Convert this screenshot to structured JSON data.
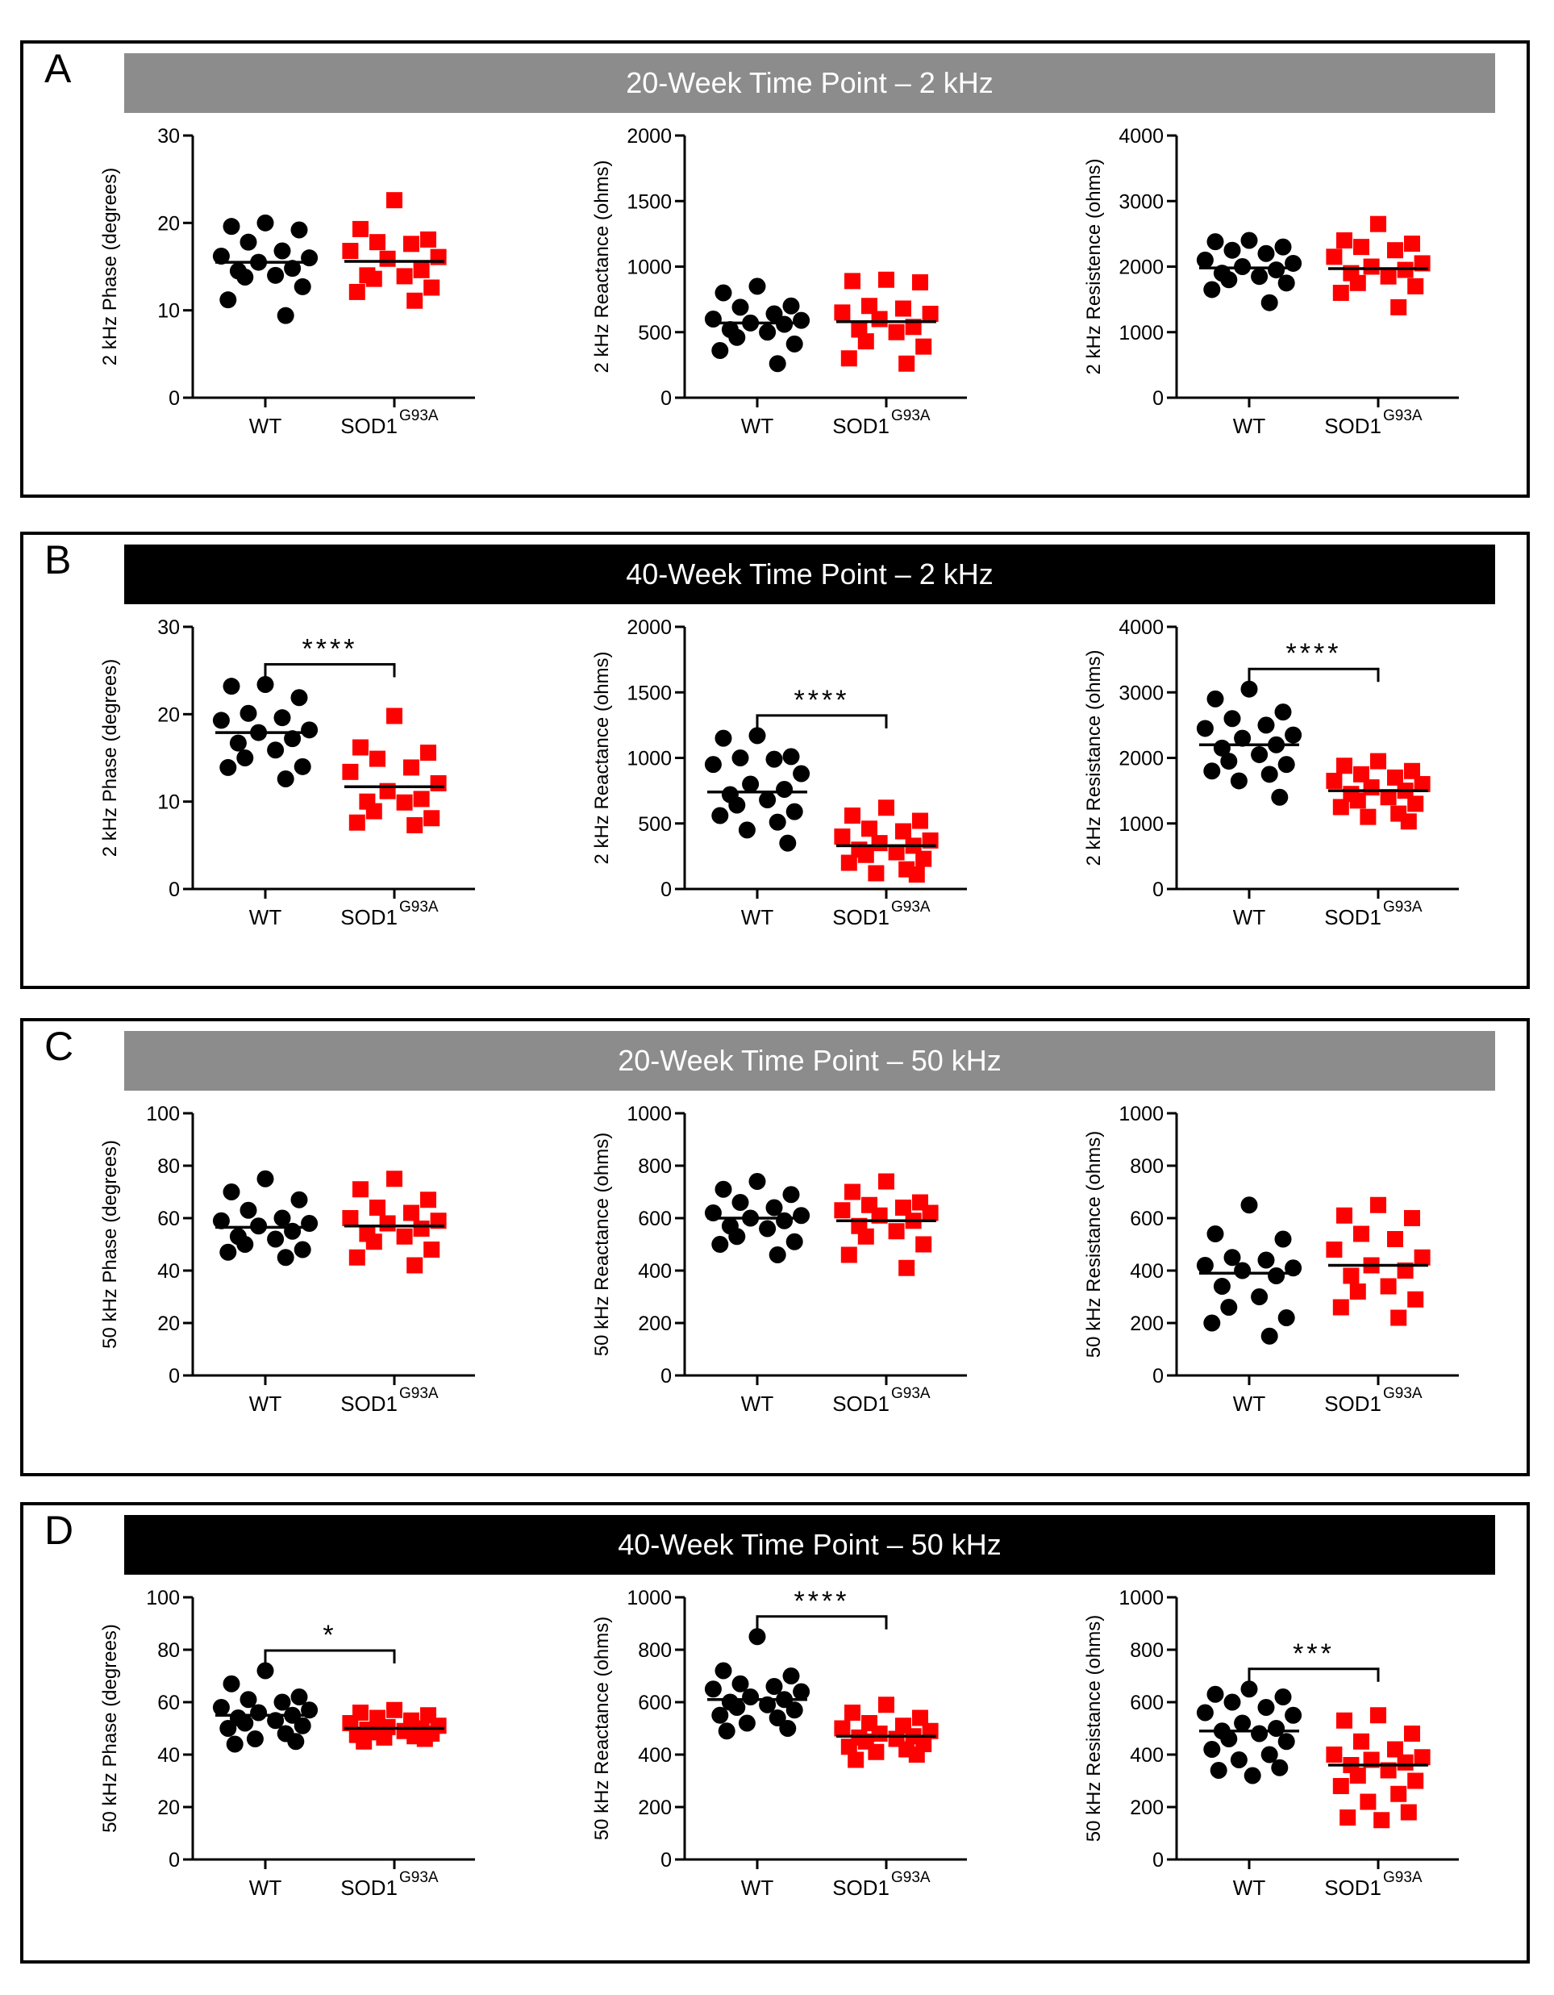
{
  "colors": {
    "wt": "#000000",
    "sod1": "#ff0000",
    "banner_gray": "#8c8c8c",
    "banner_black": "#000000"
  },
  "panels": [
    {
      "letter": "A",
      "title": "20-Week Time Point – 2 kHz",
      "banner": "gray"
    },
    {
      "letter": "B",
      "title": "40-Week Time Point – 2 kHz",
      "banner": "black"
    },
    {
      "letter": "C",
      "title": "20-Week Time Point – 50 kHz",
      "banner": "gray"
    },
    {
      "letter": "D",
      "title": "40-Week Time Point – 50 kHz",
      "banner": "black"
    }
  ],
  "chart_data": [
    {
      "panel": "A",
      "type": "scatter",
      "ylabel": "2 kHz Phase (degrees)",
      "ylim": [
        0,
        30
      ],
      "yticks": [
        0,
        10,
        20,
        30
      ],
      "categories": [
        "WT",
        "SOD1",
        "G93A"
      ],
      "significance": "",
      "series": [
        {
          "name": "WT",
          "values": [
            20,
            19.6,
            19.2,
            17.8,
            16.8,
            16.2,
            16,
            15.5,
            14.8,
            14.5,
            14,
            13.8,
            12.7,
            11.2,
            9.4
          ],
          "mean": 15.5
        },
        {
          "name": "SOD1 G93A",
          "values": [
            22.6,
            19.3,
            18.1,
            17.8,
            17.6,
            16.8,
            16.1,
            15.9,
            14.6,
            14,
            13.9,
            13.6,
            12.6,
            12.1,
            11.1
          ],
          "mean": 15.6
        }
      ]
    },
    {
      "panel": "A",
      "type": "scatter",
      "ylabel": "2 kHz Reactance (ohms)",
      "ylim": [
        0,
        2000
      ],
      "yticks": [
        0,
        500,
        1000,
        1500,
        2000
      ],
      "categories": [
        "WT",
        "SOD1",
        "G93A"
      ],
      "significance": "",
      "series": [
        {
          "name": "WT",
          "values": [
            850,
            800,
            700,
            690,
            640,
            600,
            590,
            570,
            560,
            520,
            500,
            460,
            410,
            360,
            260
          ],
          "mean": 570
        },
        {
          "name": "SOD1 G93A",
          "values": [
            900,
            890,
            880,
            700,
            680,
            650,
            640,
            600,
            540,
            520,
            500,
            430,
            390,
            300,
            260
          ],
          "mean": 580
        }
      ]
    },
    {
      "panel": "A",
      "type": "scatter",
      "ylabel": "2 kHz Resistence (ohms)",
      "ylim": [
        0,
        4000
      ],
      "yticks": [
        0,
        1000,
        2000,
        3000,
        4000
      ],
      "categories": [
        "WT",
        "SOD1",
        "G93A"
      ],
      "significance": "",
      "series": [
        {
          "name": "WT",
          "values": [
            2400,
            2380,
            2300,
            2250,
            2200,
            2100,
            2050,
            2000,
            1950,
            1900,
            1850,
            1800,
            1750,
            1650,
            1450
          ],
          "mean": 1980
        },
        {
          "name": "SOD1 G93A",
          "values": [
            2650,
            2400,
            2350,
            2300,
            2250,
            2150,
            2050,
            2000,
            1950,
            1900,
            1850,
            1750,
            1700,
            1600,
            1380
          ],
          "mean": 1970
        }
      ]
    },
    {
      "panel": "B",
      "type": "scatter",
      "ylabel": "2 kHz Phase (degrees)",
      "ylim": [
        0,
        30
      ],
      "yticks": [
        0,
        10,
        20,
        30
      ],
      "categories": [
        "WT",
        "SOD1",
        "G93A"
      ],
      "significance": "****",
      "series": [
        {
          "name": "WT",
          "values": [
            23.4,
            23.2,
            21.9,
            20.1,
            19.6,
            19.3,
            18.2,
            17.9,
            17.2,
            16.7,
            15.9,
            15,
            14,
            13.9,
            12.6
          ],
          "mean": 17.9
        },
        {
          "name": "SOD1 G93A",
          "values": [
            19.8,
            16.2,
            15.6,
            14.9,
            13.9,
            13.4,
            12.1,
            11.2,
            10.3,
            10,
            9.9,
            8.9,
            8.1,
            7.6,
            7.3
          ],
          "mean": 11.7
        }
      ]
    },
    {
      "panel": "B",
      "type": "scatter",
      "ylabel": "2 kHz Reactance (ohms)",
      "ylim": [
        0,
        2000
      ],
      "yticks": [
        0,
        500,
        1000,
        1500,
        2000
      ],
      "categories": [
        "WT",
        "SOD1",
        "G93A"
      ],
      "significance": "****",
      "series": [
        {
          "name": "WT",
          "values": [
            1170,
            1150,
            1010,
            1000,
            990,
            950,
            880,
            800,
            760,
            720,
            680,
            640,
            590,
            560,
            510,
            450,
            350
          ],
          "mean": 740
        },
        {
          "name": "SOD1 G93A",
          "values": [
            620,
            560,
            520,
            460,
            440,
            400,
            370,
            350,
            330,
            300,
            280,
            260,
            230,
            200,
            150,
            120,
            110
          ],
          "mean": 330
        }
      ]
    },
    {
      "panel": "B",
      "type": "scatter",
      "ylabel": "2 kHz Resistance (ohms)",
      "ylim": [
        0,
        4000
      ],
      "yticks": [
        0,
        1000,
        2000,
        3000,
        4000
      ],
      "categories": [
        "WT",
        "SOD1",
        "G93A"
      ],
      "significance": "****",
      "series": [
        {
          "name": "WT",
          "values": [
            3050,
            2900,
            2700,
            2600,
            2500,
            2450,
            2350,
            2300,
            2200,
            2150,
            2050,
            1950,
            1900,
            1800,
            1750,
            1650,
            1400
          ],
          "mean": 2200
        },
        {
          "name": "SOD1 G93A",
          "values": [
            1950,
            1880,
            1800,
            1750,
            1700,
            1650,
            1600,
            1550,
            1500,
            1450,
            1400,
            1350,
            1300,
            1250,
            1150,
            1100,
            1030
          ],
          "mean": 1500
        }
      ]
    },
    {
      "panel": "C",
      "type": "scatter",
      "ylabel": "50 kHz Phase (degrees)",
      "ylim": [
        0,
        100
      ],
      "yticks": [
        0,
        20,
        40,
        60,
        80,
        100
      ],
      "categories": [
        "WT",
        "SOD1",
        "G93A"
      ],
      "significance": "",
      "series": [
        {
          "name": "WT",
          "values": [
            75,
            70,
            67,
            63,
            60,
            59,
            58,
            57,
            55,
            53,
            52,
            50,
            48,
            47,
            45
          ],
          "mean": 56.5
        },
        {
          "name": "SOD1 G93A",
          "values": [
            75,
            71,
            67,
            64,
            62,
            60,
            59,
            58,
            56,
            54,
            53,
            51,
            48,
            45,
            42
          ],
          "mean": 57
        }
      ]
    },
    {
      "panel": "C",
      "type": "scatter",
      "ylabel": "50 kHz Reactance (ohms)",
      "ylim": [
        0,
        1000
      ],
      "yticks": [
        0,
        200,
        400,
        600,
        800,
        1000
      ],
      "categories": [
        "WT",
        "SOD1",
        "G93A"
      ],
      "significance": "",
      "series": [
        {
          "name": "WT",
          "values": [
            740,
            710,
            690,
            660,
            640,
            620,
            610,
            600,
            590,
            570,
            560,
            530,
            510,
            500,
            460
          ],
          "mean": 600
        },
        {
          "name": "SOD1 G93A",
          "values": [
            740,
            700,
            660,
            650,
            640,
            630,
            620,
            610,
            590,
            570,
            550,
            530,
            500,
            460,
            410
          ],
          "mean": 590
        }
      ]
    },
    {
      "panel": "C",
      "type": "scatter",
      "ylabel": "50 kHz Resistance (ohms)",
      "ylim": [
        0,
        1000
      ],
      "yticks": [
        0,
        200,
        400,
        600,
        800,
        1000
      ],
      "categories": [
        "WT",
        "SOD1",
        "G93A"
      ],
      "significance": "",
      "series": [
        {
          "name": "WT",
          "values": [
            650,
            540,
            520,
            450,
            440,
            420,
            410,
            400,
            380,
            340,
            300,
            260,
            220,
            200,
            150
          ],
          "mean": 390
        },
        {
          "name": "SOD1 G93A",
          "values": [
            650,
            610,
            600,
            540,
            520,
            480,
            450,
            420,
            400,
            380,
            340,
            320,
            290,
            260,
            220
          ],
          "mean": 420
        }
      ]
    },
    {
      "panel": "D",
      "type": "scatter",
      "ylabel": "50 kHz Phase (degrees)",
      "ylim": [
        0,
        100
      ],
      "yticks": [
        0,
        20,
        40,
        60,
        80,
        100
      ],
      "categories": [
        "WT",
        "SOD1",
        "G93A"
      ],
      "significance": "*",
      "series": [
        {
          "name": "WT",
          "values": [
            72,
            67,
            62,
            61,
            60,
            58,
            57,
            56,
            55,
            54,
            53,
            52,
            51,
            50,
            48,
            46,
            45,
            44
          ],
          "mean": 55
        },
        {
          "name": "SOD1 G93A",
          "values": [
            57,
            56,
            55,
            54,
            53,
            52,
            51,
            50.5,
            50,
            49.5,
            49,
            48.5,
            48,
            47.5,
            47,
            46.5,
            46,
            45
          ],
          "mean": 50
        }
      ]
    },
    {
      "panel": "D",
      "type": "scatter",
      "ylabel": "50 kHz Reactance (ohms)",
      "ylim": [
        0,
        1000
      ],
      "yticks": [
        0,
        200,
        400,
        600,
        800,
        1000
      ],
      "categories": [
        "WT",
        "SOD1",
        "G93A"
      ],
      "significance": "****",
      "series": [
        {
          "name": "WT",
          "values": [
            850,
            720,
            700,
            670,
            660,
            650,
            640,
            620,
            610,
            600,
            590,
            580,
            570,
            550,
            540,
            520,
            500,
            490
          ],
          "mean": 610
        },
        {
          "name": "SOD1 G93A",
          "values": [
            590,
            560,
            540,
            520,
            510,
            500,
            490,
            480,
            470,
            465,
            460,
            450,
            440,
            430,
            420,
            410,
            400,
            380
          ],
          "mean": 470
        }
      ]
    },
    {
      "panel": "D",
      "type": "scatter",
      "ylabel": "50 kHz Resistance (ohms)",
      "ylim": [
        0,
        1000
      ],
      "yticks": [
        0,
        200,
        400,
        600,
        800,
        1000
      ],
      "categories": [
        "WT",
        "SOD1",
        "G93A"
      ],
      "significance": "***",
      "series": [
        {
          "name": "WT",
          "values": [
            650,
            630,
            620,
            600,
            580,
            560,
            550,
            520,
            500,
            490,
            480,
            460,
            450,
            420,
            400,
            380,
            350,
            340,
            320
          ],
          "mean": 490
        },
        {
          "name": "SOD1 G93A",
          "values": [
            550,
            530,
            480,
            450,
            420,
            400,
            390,
            380,
            370,
            360,
            340,
            320,
            300,
            280,
            250,
            220,
            180,
            160,
            150
          ],
          "mean": 360
        }
      ]
    }
  ]
}
